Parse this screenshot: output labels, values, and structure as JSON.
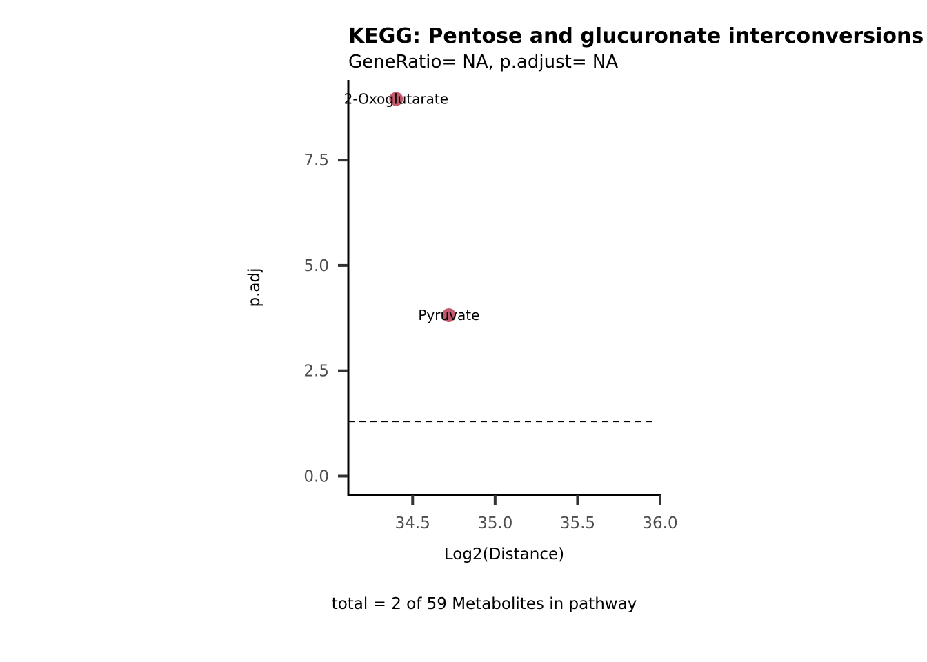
{
  "chart_data": {
    "type": "scatter",
    "title": "KEGG: Pentose and glucuronate interconversions",
    "subtitle": "GeneRatio= NA, p.adjust= NA",
    "xlabel": "Log2(Distance)",
    "ylabel": "p.adj",
    "caption": "total = 2 of 59 Metabolites in pathway",
    "xlim": [
      34.11,
      36.0
    ],
    "ylim": [
      -0.45,
      9.4
    ],
    "x_ticks": [
      34.5,
      35.0,
      35.5,
      36.0
    ],
    "x_tick_labels": [
      "34.5",
      "35.0",
      "35.5",
      "36.0"
    ],
    "y_ticks": [
      0.0,
      2.5,
      5.0,
      7.5
    ],
    "y_tick_labels": [
      "0.0",
      "2.5",
      "5.0",
      "7.5"
    ],
    "threshold_y": 1.3,
    "grid": false,
    "points": [
      {
        "label": "2-Oxoglutarate",
        "x": 34.4,
        "y": 8.95
      },
      {
        "label": "Pyruvate",
        "x": 34.72,
        "y": 3.82
      }
    ],
    "colors": {
      "point": "#c45a6e",
      "axis": "#000000",
      "tick": "#333333",
      "tick_label": "#4d4d4d",
      "threshold": "#000000"
    }
  }
}
